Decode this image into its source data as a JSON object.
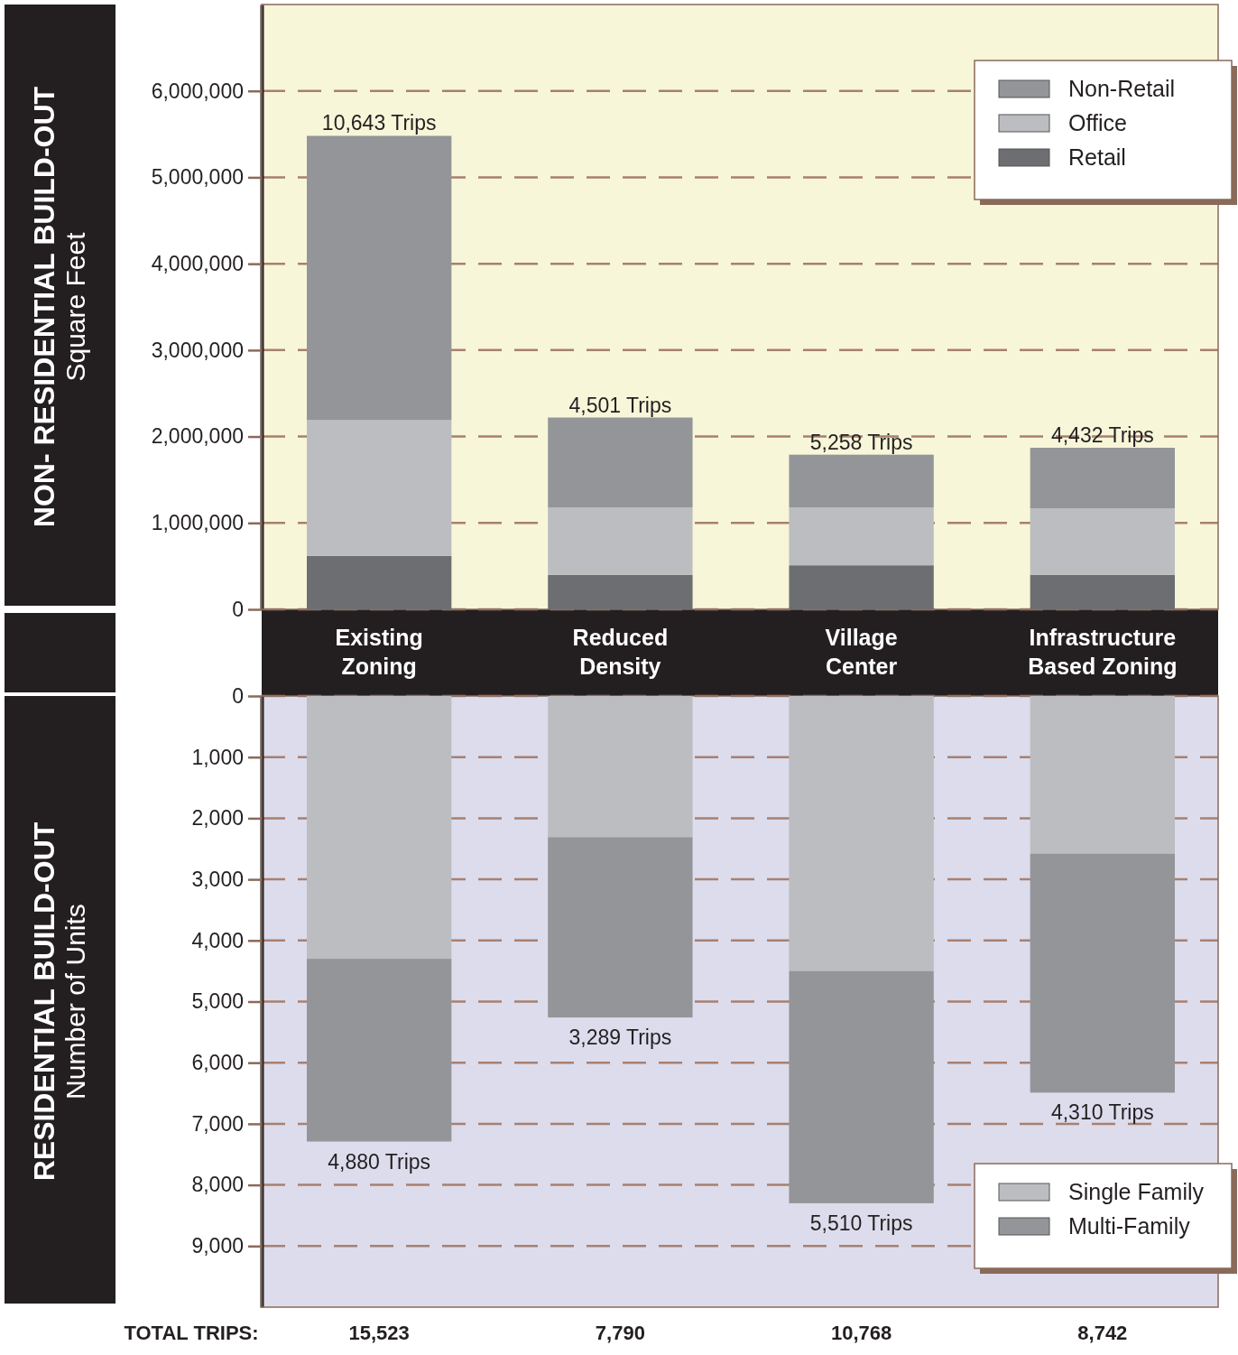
{
  "chart_data": [
    {
      "type": "bar",
      "stacked": true,
      "ylabel": "NON- RESIDENTIAL BUILD-OUT\nSquare Feet",
      "categories": [
        "Existing Zoning",
        "Reduced Density",
        "Village Center",
        "Infrastructure Based Zoning"
      ],
      "series": [
        {
          "name": "Retail",
          "color": "#6d6e71",
          "values": [
            620000,
            400000,
            510000,
            400000
          ]
        },
        {
          "name": "Office",
          "color": "#bcbdc0",
          "values": [
            1570000,
            780000,
            670000,
            770000
          ]
        },
        {
          "name": "Non-Retail",
          "color": "#939598",
          "values": [
            3290000,
            1040000,
            610000,
            700000
          ]
        }
      ],
      "annotations": [
        {
          "text": "10,643 Trips",
          "x": "Existing Zoning",
          "y": 5480000
        },
        {
          "text": "4,501 Trips",
          "x": "Reduced Density",
          "y": 2220000
        },
        {
          "text": "5,258 Trips",
          "x": "Village Center",
          "y": 1790000
        },
        {
          "text": "4,432 Trips",
          "x": "Infrastructure Based Zoning",
          "y": 1870000
        }
      ],
      "ylim": [
        0,
        7000000
      ],
      "yticks": [
        {
          "value": 0,
          "label": "0"
        },
        {
          "value": 1000000,
          "label": "1,000,000"
        },
        {
          "value": 2000000,
          "label": "2,000,000"
        },
        {
          "value": 3000000,
          "label": "3,000,000"
        },
        {
          "value": 4000000,
          "label": "4,000,000"
        },
        {
          "value": 5000000,
          "label": "5,000,000"
        },
        {
          "value": 6000000,
          "label": "6,000,000"
        }
      ],
      "grid": "y",
      "legend": "top right"
    },
    {
      "type": "bar",
      "stacked": true,
      "ylabel": "RESIDENTIAL BUILD-OUT\nNumber of Units",
      "categories": [
        "Existing Zoning",
        "Reduced Density",
        "Village Center",
        "Infrastructure Based Zoning"
      ],
      "tick_labels": "y",
      "series": [
        {
          "name": "Single Family",
          "color": "#bcbdc0",
          "values": [
            4300,
            2310,
            4500,
            2580
          ]
        },
        {
          "name": "Multi-Family",
          "color": "#939598",
          "values": [
            2990,
            2950,
            3800,
            3910
          ]
        }
      ],
      "ylim": [
        10000,
        0
      ],
      "yticks": [
        {
          "value": 0,
          "label": "0"
        },
        {
          "value": 1000,
          "label": "1,000"
        },
        {
          "value": 2000,
          "label": "2,000"
        },
        {
          "value": 3000,
          "label": "3,000"
        },
        {
          "value": 4000,
          "label": "4,000"
        },
        {
          "value": 5000,
          "label": "5,000"
        },
        {
          "value": 6000,
          "label": "6,000"
        },
        {
          "value": 7000,
          "label": "7,000"
        },
        {
          "value": 8000,
          "label": "8,000"
        },
        {
          "value": 9000,
          "label": "9,000"
        }
      ],
      "grid": "y",
      "legend": "bottom right",
      "annotations": [
        {
          "text": "4,880 Trips",
          "x": "Existing Zoning",
          "y": 7290
        },
        {
          "text": "3,289 Trips",
          "x": "Reduced Density",
          "y": 5260
        },
        {
          "text": "5,510 Trips",
          "x": "Village Center",
          "y": 8300
        },
        {
          "text": "4,310 Trips",
          "x": "Infrastructure Based Zoning",
          "y": 6490
        },
        "TOTAL TRIPS:",
        "15,523",
        "7,790",
        "10,768",
        "8,742"
      ]
    }
  ]
}
